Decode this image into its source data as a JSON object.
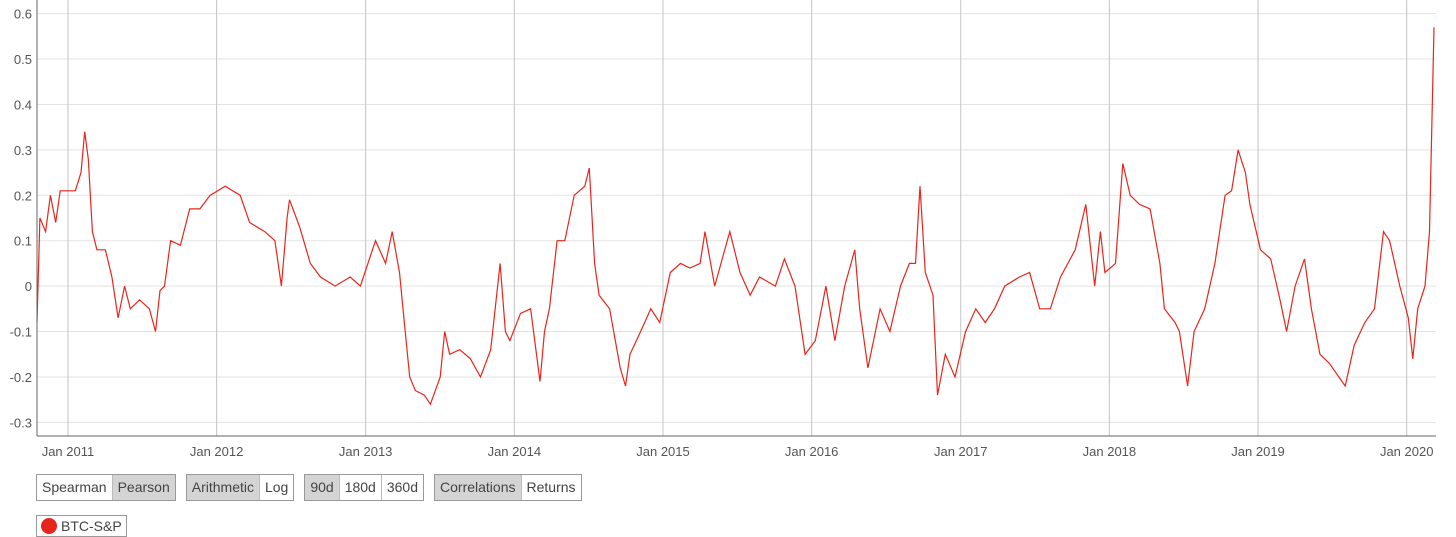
{
  "chart_data": {
    "type": "line",
    "title": "",
    "xlabel": "",
    "ylabel": "",
    "ylim": [
      -0.33,
      0.63
    ],
    "xlim": [
      "2010-10-17",
      "2020-03-08"
    ],
    "y_ticks": [
      "0.6",
      "0.5",
      "0.4",
      "0.3",
      "0.2",
      "0.1",
      "0",
      "-0.1",
      "-0.2",
      "-0.3"
    ],
    "y_tick_values": [
      0.6,
      0.5,
      0.4,
      0.3,
      0.2,
      0.1,
      0,
      -0.1,
      -0.2,
      -0.3
    ],
    "x_ticks": [
      "Jan 2011",
      "Jan 2012",
      "Jan 2013",
      "Jan 2014",
      "Jan 2015",
      "Jan 2016",
      "Jan 2017",
      "Jan 2018",
      "Jan 2019",
      "Jan 2020"
    ],
    "x_tick_dates": [
      "2011-01-01",
      "2012-01-01",
      "2013-01-01",
      "2014-01-01",
      "2015-01-01",
      "2016-01-01",
      "2017-01-01",
      "2018-01-01",
      "2019-01-01",
      "2020-01-01"
    ],
    "grid": true,
    "series": [
      {
        "name": "BTC-S&P",
        "color": "#e8251c",
        "points": [
          [
            "2010-10-17",
            -0.08
          ],
          [
            "2010-10-24",
            0.15
          ],
          [
            "2010-11-07",
            0.12
          ],
          [
            "2010-11-19",
            0.2
          ],
          [
            "2010-12-02",
            0.14
          ],
          [
            "2010-12-13",
            0.21
          ],
          [
            "2011-01-01",
            0.21
          ],
          [
            "2011-01-19",
            0.21
          ],
          [
            "2011-02-02",
            0.25
          ],
          [
            "2011-02-11",
            0.34
          ],
          [
            "2011-02-20",
            0.28
          ],
          [
            "2011-03-02",
            0.12
          ],
          [
            "2011-03-13",
            0.08
          ],
          [
            "2011-04-03",
            0.08
          ],
          [
            "2011-04-19",
            0.02
          ],
          [
            "2011-05-04",
            -0.07
          ],
          [
            "2011-05-20",
            0.0
          ],
          [
            "2011-06-03",
            -0.05
          ],
          [
            "2011-06-26",
            -0.03
          ],
          [
            "2011-07-20",
            -0.05
          ],
          [
            "2011-08-04",
            -0.1
          ],
          [
            "2011-08-15",
            -0.01
          ],
          [
            "2011-08-26",
            0.0
          ],
          [
            "2011-09-10",
            0.1
          ],
          [
            "2011-10-04",
            0.09
          ],
          [
            "2011-10-27",
            0.17
          ],
          [
            "2011-11-21",
            0.17
          ],
          [
            "2011-12-16",
            0.2
          ],
          [
            "2012-01-22",
            0.22
          ],
          [
            "2012-02-28",
            0.2
          ],
          [
            "2012-03-22",
            0.14
          ],
          [
            "2012-04-28",
            0.12
          ],
          [
            "2012-05-23",
            0.1
          ],
          [
            "2012-06-08",
            0.0
          ],
          [
            "2012-06-22",
            0.15
          ],
          [
            "2012-06-28",
            0.19
          ],
          [
            "2012-07-23",
            0.13
          ],
          [
            "2012-08-18",
            0.05
          ],
          [
            "2012-09-12",
            0.02
          ],
          [
            "2012-10-18",
            0.0
          ],
          [
            "2012-11-24",
            0.02
          ],
          [
            "2012-12-19",
            0.0
          ],
          [
            "2013-01-25",
            0.1
          ],
          [
            "2013-02-19",
            0.05
          ],
          [
            "2013-03-07",
            0.12
          ],
          [
            "2013-03-25",
            0.03
          ],
          [
            "2013-04-08",
            -0.1
          ],
          [
            "2013-04-19",
            -0.2
          ],
          [
            "2013-05-03",
            -0.23
          ],
          [
            "2013-05-25",
            -0.24
          ],
          [
            "2013-06-09",
            -0.26
          ],
          [
            "2013-07-03",
            -0.2
          ],
          [
            "2013-07-14",
            -0.1
          ],
          [
            "2013-07-26",
            -0.15
          ],
          [
            "2013-08-20",
            -0.14
          ],
          [
            "2013-09-15",
            -0.16
          ],
          [
            "2013-10-10",
            -0.2
          ],
          [
            "2013-11-04",
            -0.14
          ],
          [
            "2013-11-27",
            0.05
          ],
          [
            "2013-12-10",
            -0.1
          ],
          [
            "2013-12-21",
            -0.12
          ],
          [
            "2014-01-16",
            -0.06
          ],
          [
            "2014-02-10",
            -0.05
          ],
          [
            "2014-03-05",
            -0.21
          ],
          [
            "2014-03-16",
            -0.1
          ],
          [
            "2014-03-28",
            -0.05
          ],
          [
            "2014-04-16",
            0.1
          ],
          [
            "2014-05-05",
            0.1
          ],
          [
            "2014-05-28",
            0.2
          ],
          [
            "2014-06-23",
            0.22
          ],
          [
            "2014-07-04",
            0.26
          ],
          [
            "2014-07-17",
            0.05
          ],
          [
            "2014-07-28",
            -0.02
          ],
          [
            "2014-08-23",
            -0.05
          ],
          [
            "2014-09-18",
            -0.18
          ],
          [
            "2014-10-01",
            -0.22
          ],
          [
            "2014-10-12",
            -0.15
          ],
          [
            "2014-11-07",
            -0.1
          ],
          [
            "2014-12-02",
            -0.05
          ],
          [
            "2014-12-24",
            -0.08
          ],
          [
            "2015-01-19",
            0.03
          ],
          [
            "2015-02-13",
            0.05
          ],
          [
            "2015-03-08",
            0.04
          ],
          [
            "2015-04-02",
            0.05
          ],
          [
            "2015-04-14",
            0.12
          ],
          [
            "2015-05-08",
            0.0
          ],
          [
            "2015-06-14",
            0.12
          ],
          [
            "2015-07-09",
            0.03
          ],
          [
            "2015-08-03",
            -0.02
          ],
          [
            "2015-08-26",
            0.02
          ],
          [
            "2015-10-04",
            0.0
          ],
          [
            "2015-10-26",
            0.06
          ],
          [
            "2015-11-21",
            0.0
          ],
          [
            "2015-12-16",
            -0.15
          ],
          [
            "2016-01-10",
            -0.12
          ],
          [
            "2016-02-05",
            0.0
          ],
          [
            "2016-02-27",
            -0.12
          ],
          [
            "2016-03-22",
            0.0
          ],
          [
            "2016-04-16",
            0.08
          ],
          [
            "2016-04-28",
            -0.05
          ],
          [
            "2016-05-18",
            -0.18
          ],
          [
            "2016-06-17",
            -0.05
          ],
          [
            "2016-07-11",
            -0.1
          ],
          [
            "2016-08-06",
            0.0
          ],
          [
            "2016-08-28",
            0.05
          ],
          [
            "2016-09-12",
            0.05
          ],
          [
            "2016-09-23",
            0.22
          ],
          [
            "2016-10-06",
            0.03
          ],
          [
            "2016-10-25",
            -0.02
          ],
          [
            "2016-11-05",
            -0.24
          ],
          [
            "2016-11-24",
            -0.15
          ],
          [
            "2016-12-18",
            -0.2
          ],
          [
            "2017-01-13",
            -0.1
          ],
          [
            "2017-02-07",
            -0.05
          ],
          [
            "2017-03-02",
            -0.08
          ],
          [
            "2017-03-25",
            -0.05
          ],
          [
            "2017-04-19",
            0.0
          ],
          [
            "2017-05-25",
            0.02
          ],
          [
            "2017-06-19",
            0.03
          ],
          [
            "2017-07-14",
            -0.05
          ],
          [
            "2017-08-09",
            -0.05
          ],
          [
            "2017-09-03",
            0.02
          ],
          [
            "2017-10-09",
            0.08
          ],
          [
            "2017-11-04",
            0.18
          ],
          [
            "2017-11-26",
            0.0
          ],
          [
            "2017-12-10",
            0.12
          ],
          [
            "2017-12-21",
            0.03
          ],
          [
            "2018-01-16",
            0.05
          ],
          [
            "2018-02-03",
            0.27
          ],
          [
            "2018-02-21",
            0.2
          ],
          [
            "2018-03-16",
            0.18
          ],
          [
            "2018-04-11",
            0.17
          ],
          [
            "2018-05-05",
            0.05
          ],
          [
            "2018-05-16",
            -0.05
          ],
          [
            "2018-06-11",
            -0.08
          ],
          [
            "2018-06-22",
            -0.1
          ],
          [
            "2018-07-12",
            -0.22
          ],
          [
            "2018-07-28",
            -0.1
          ],
          [
            "2018-08-23",
            -0.05
          ],
          [
            "2018-09-17",
            0.05
          ],
          [
            "2018-10-12",
            0.2
          ],
          [
            "2018-10-28",
            0.21
          ],
          [
            "2018-11-13",
            0.3
          ],
          [
            "2018-12-01",
            0.25
          ],
          [
            "2018-12-12",
            0.18
          ],
          [
            "2019-01-07",
            0.08
          ],
          [
            "2019-02-01",
            0.06
          ],
          [
            "2019-02-24",
            -0.03
          ],
          [
            "2019-03-12",
            -0.1
          ],
          [
            "2019-04-02",
            0.0
          ],
          [
            "2019-04-25",
            0.06
          ],
          [
            "2019-05-12",
            -0.05
          ],
          [
            "2019-06-02",
            -0.15
          ],
          [
            "2019-06-25",
            -0.17
          ],
          [
            "2019-08-03",
            -0.22
          ],
          [
            "2019-08-25",
            -0.13
          ],
          [
            "2019-09-20",
            -0.08
          ],
          [
            "2019-10-14",
            -0.05
          ],
          [
            "2019-11-05",
            0.12
          ],
          [
            "2019-11-20",
            0.1
          ],
          [
            "2019-12-15",
            0.0
          ],
          [
            "2020-01-05",
            -0.07
          ],
          [
            "2020-01-16",
            -0.16
          ],
          [
            "2020-01-28",
            -0.05
          ],
          [
            "2020-02-15",
            0.0
          ],
          [
            "2020-02-26",
            0.12
          ],
          [
            "2020-03-08",
            0.57
          ]
        ]
      }
    ],
    "legend": {
      "placement": "bottom-left",
      "entries": [
        "BTC-S&P"
      ]
    }
  },
  "controls": [
    {
      "buttons": [
        {
          "label": "Spearman",
          "selected": false
        },
        {
          "label": "Pearson",
          "selected": true
        }
      ]
    },
    {
      "buttons": [
        {
          "label": "Arithmetic",
          "selected": true
        },
        {
          "label": "Log",
          "selected": false
        }
      ]
    },
    {
      "buttons": [
        {
          "label": "90d",
          "selected": true
        },
        {
          "label": "180d",
          "selected": false
        },
        {
          "label": "360d",
          "selected": false
        }
      ]
    },
    {
      "buttons": [
        {
          "label": "Correlations",
          "selected": true
        },
        {
          "label": "Returns",
          "selected": false
        }
      ]
    }
  ],
  "legend_label": "BTC-S&P",
  "colors": {
    "line": "#e8251c",
    "selected_button": "#d4d4d4"
  }
}
